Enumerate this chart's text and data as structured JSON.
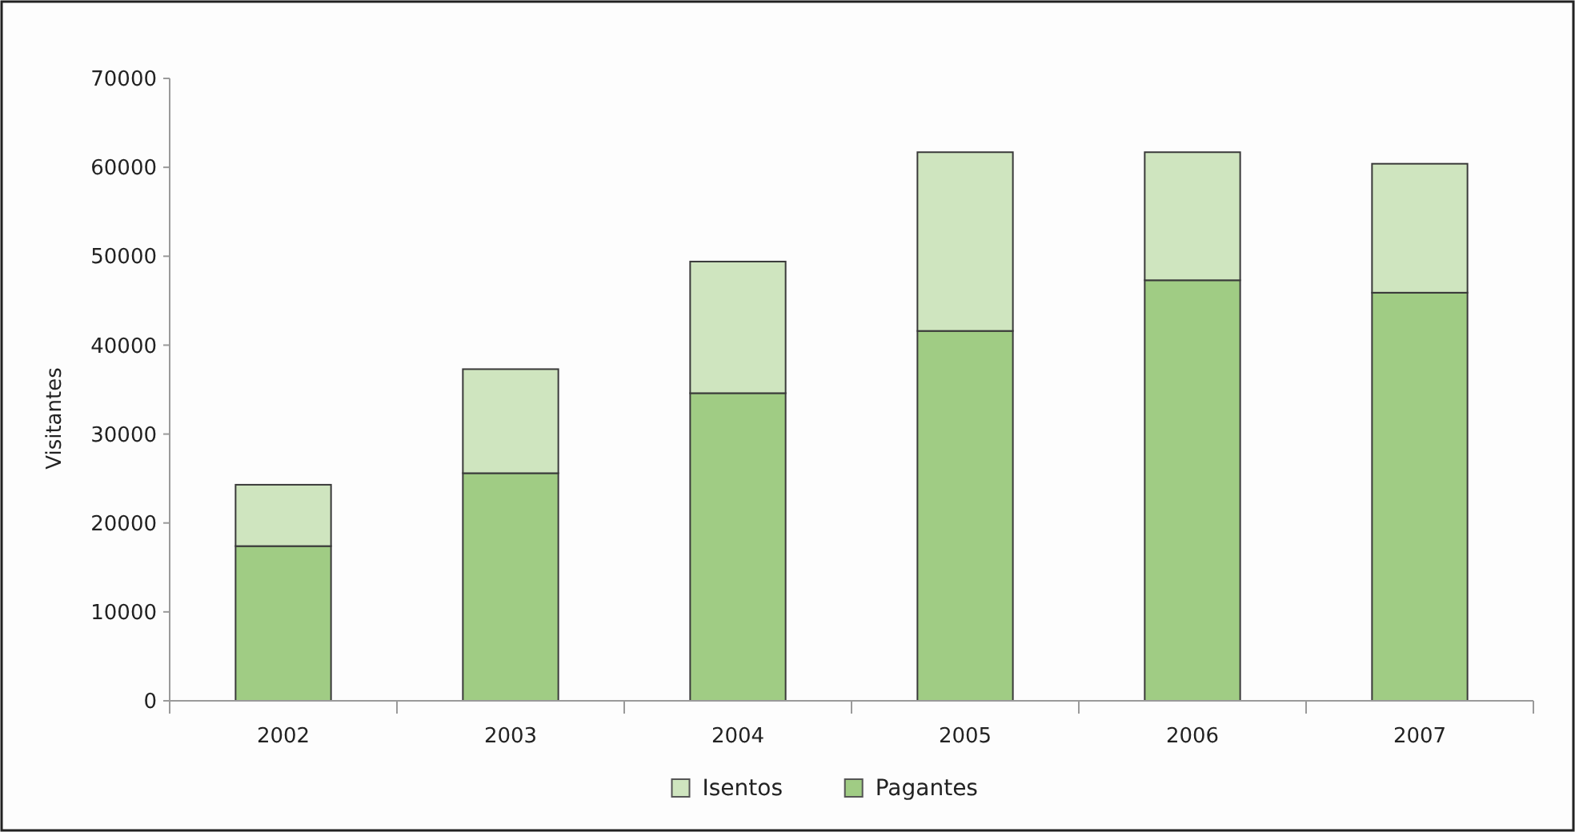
{
  "chart_data": {
    "type": "bar",
    "ylabel": "Visitantes",
    "categories": [
      "2002",
      "2003",
      "2004",
      "2005",
      "2006",
      "2007"
    ],
    "series": [
      {
        "name": "Pagantes",
        "color": "#a0cc84",
        "values": [
          17400,
          25600,
          34600,
          41600,
          47300,
          45900
        ]
      },
      {
        "name": "Isentos",
        "color": "#cfe5bf",
        "values": [
          6900,
          11700,
          14800,
          20100,
          14400,
          14500
        ]
      }
    ],
    "stacked": true,
    "ylim": [
      0,
      70000
    ],
    "yticks": [
      0,
      10000,
      20000,
      30000,
      40000,
      50000,
      60000,
      70000
    ],
    "legend": "bottom"
  }
}
